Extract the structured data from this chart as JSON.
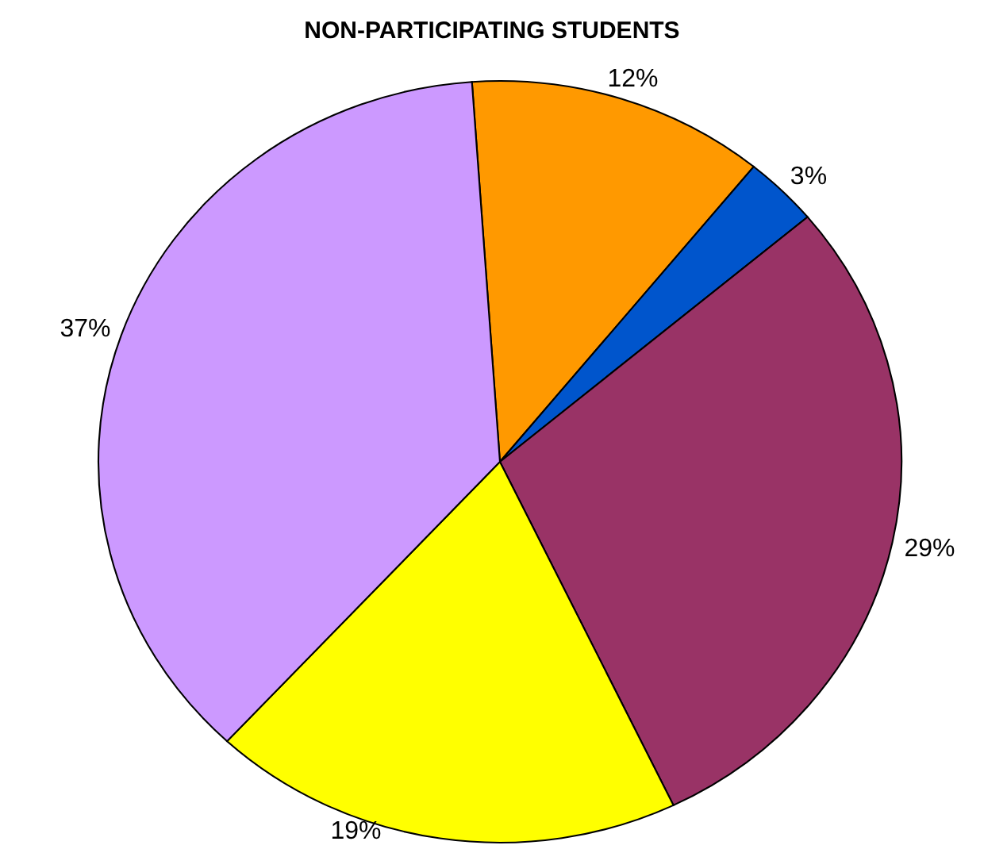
{
  "chart_data": {
    "type": "pie",
    "title": "NON-PARTICIPATING STUDENTS",
    "categories": [
      null,
      null,
      null,
      null,
      null
    ],
    "values": [
      12,
      3,
      29,
      19,
      37
    ],
    "colors": [
      "#ff9900",
      "#0055cc",
      "#993366",
      "#ffff00",
      "#cc99ff"
    ],
    "value_labels": [
      "12%",
      "3%",
      "29%",
      "19%",
      "37%"
    ]
  }
}
